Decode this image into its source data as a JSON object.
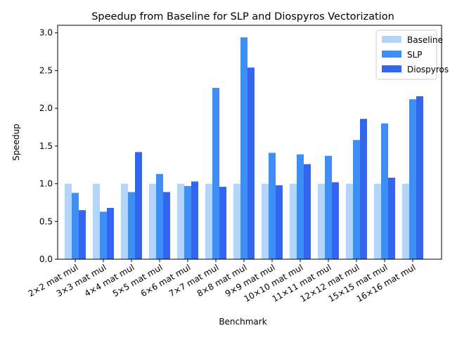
{
  "chart_data": {
    "type": "bar",
    "title": "Speedup from Baseline for SLP and Diospyros Vectorization",
    "xlabel": "Benchmark",
    "ylabel": "Speedup",
    "ylim": [
      0,
      3.1
    ],
    "yticks": [
      "0.0",
      "0.5",
      "1.0",
      "1.5",
      "2.0",
      "2.5",
      "3.0"
    ],
    "legend_position": "top-right",
    "grid": false,
    "categories": [
      "2×2 mat mul",
      "3×3 mat mul",
      "4×4 mat mul",
      "5×5 mat mul",
      "6×6 mat mul",
      "7×7 mat mul",
      "8×8 mat mul",
      "9×9 mat mul",
      "10×10 mat mul",
      "11×11 mat mul",
      "12×12 mat mul",
      "15×15 mat mul",
      "16×16 mat mul"
    ],
    "series": [
      {
        "name": "Baseline",
        "color": "#b3d4fb",
        "values": [
          1.0,
          1.0,
          1.0,
          1.0,
          1.0,
          1.0,
          1.0,
          1.0,
          1.0,
          1.0,
          1.0,
          1.0,
          1.0
        ]
      },
      {
        "name": "SLP",
        "color": "#3d8ff3",
        "values": [
          0.88,
          0.63,
          0.89,
          1.13,
          0.97,
          2.27,
          2.94,
          1.41,
          1.39,
          1.37,
          1.58,
          1.8,
          2.12
        ]
      },
      {
        "name": "Diospyros",
        "color": "#3366f0",
        "values": [
          0.65,
          0.68,
          1.42,
          0.89,
          1.03,
          0.96,
          2.54,
          0.98,
          1.26,
          1.02,
          1.86,
          1.08,
          2.16
        ]
      }
    ]
  }
}
